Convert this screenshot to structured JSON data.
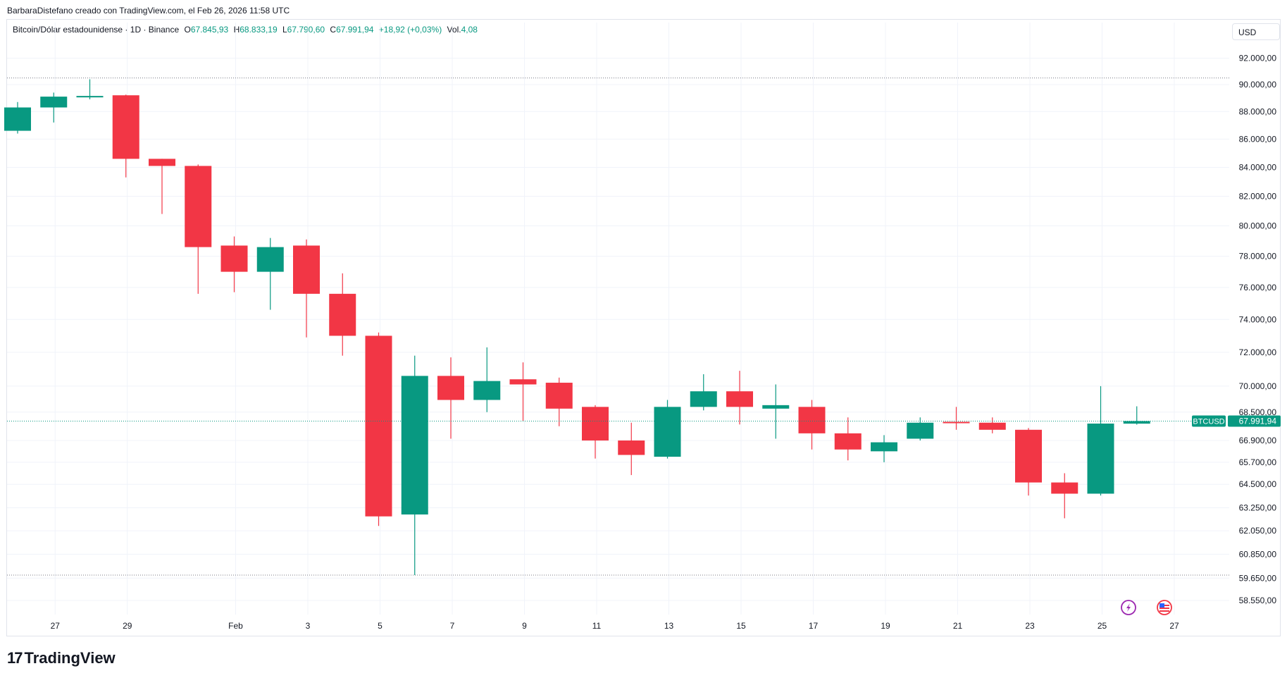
{
  "credit": "BarbaraDistefano creado con TradingView.com, el Feb 26, 2026 11:58 UTC",
  "legend": {
    "symbol": "Bitcoin/Dólar estadounidense · 1D · Binance",
    "o_label": "O",
    "o_value": "67.845,93",
    "h_label": "H",
    "h_value": "68.833,19",
    "l_label": "L",
    "l_value": "67.790,60",
    "c_label": "C",
    "c_value": "67.991,94",
    "change": "+18,92 (+0,03%)",
    "vol_label": "Vol.",
    "vol_value": "4,08"
  },
  "currency_button": "USD",
  "logo_text": "TradingView",
  "icons": {
    "logo": "tradingview-logo-icon",
    "flash": "lightning-icon",
    "flag": "us-flag-icon"
  },
  "colors": {
    "up": "#089981",
    "down": "#f23645",
    "grid": "#f0f3fa",
    "price_tag": "#089981"
  },
  "chart_data": {
    "type": "candlestick",
    "symbol_tag": "BTCUSD",
    "last_price_label": "67.991,94",
    "last_price": 67991.94,
    "y_scale": "log",
    "ylim": [
      57800,
      93200
    ],
    "y_ticks": [
      92000,
      90000,
      88000,
      86000,
      84000,
      82000,
      80000,
      78000,
      76000,
      74000,
      72000,
      70000,
      68500,
      66900,
      65700,
      64500,
      63250,
      62050,
      60850,
      59650,
      58550
    ],
    "y_tick_labels": [
      "92.000,00",
      "90.000,00",
      "88.000,00",
      "86.000,00",
      "84.000,00",
      "82.000,00",
      "80.000,00",
      "78.000,00",
      "76.000,00",
      "74.000,00",
      "72.000,00",
      "70.000,00",
      "68.500,00",
      "66.900,00",
      "65.700,00",
      "64.500,00",
      "63.250,00",
      "62.050,00",
      "60.850,00",
      "59.650,00",
      "58.550,00"
    ],
    "x_ticks": [
      {
        "label": "27",
        "day": 1
      },
      {
        "label": "29",
        "day": 3
      },
      {
        "label": "Feb",
        "day": 6
      },
      {
        "label": "3",
        "day": 8
      },
      {
        "label": "5",
        "day": 10
      },
      {
        "label": "7",
        "day": 12
      },
      {
        "label": "9",
        "day": 14
      },
      {
        "label": "11",
        "day": 16
      },
      {
        "label": "13",
        "day": 18
      },
      {
        "label": "15",
        "day": 20
      },
      {
        "label": "17",
        "day": 22
      },
      {
        "label": "19",
        "day": 24
      },
      {
        "label": "21",
        "day": 26
      },
      {
        "label": "23",
        "day": 28
      },
      {
        "label": "25",
        "day": 30
      },
      {
        "label": "27",
        "day": 32
      }
    ],
    "reference_lines": [
      90500,
      59800
    ],
    "candles": [
      {
        "day": 0,
        "o": 86600,
        "h": 88700,
        "l": 86400,
        "c": 88300
      },
      {
        "day": 1,
        "o": 88300,
        "h": 89400,
        "l": 87200,
        "c": 89100
      },
      {
        "day": 2,
        "o": 89100,
        "h": 90400,
        "l": 88900,
        "c": 89150
      },
      {
        "day": 3,
        "o": 89200,
        "h": 89250,
        "l": 83300,
        "c": 84600
      },
      {
        "day": 4,
        "o": 84600,
        "h": 84400,
        "l": 80800,
        "c": 84100
      },
      {
        "day": 5,
        "o": 84100,
        "h": 84200,
        "l": 75600,
        "c": 78600
      },
      {
        "day": 6,
        "o": 78700,
        "h": 79300,
        "l": 75700,
        "c": 77000
      },
      {
        "day": 7,
        "o": 77000,
        "h": 79200,
        "l": 74600,
        "c": 78600
      },
      {
        "day": 8,
        "o": 78700,
        "h": 79100,
        "l": 72900,
        "c": 75600
      },
      {
        "day": 9,
        "o": 75600,
        "h": 76900,
        "l": 71800,
        "c": 73000
      },
      {
        "day": 10,
        "o": 73000,
        "h": 73200,
        "l": 62300,
        "c": 62800
      },
      {
        "day": 11,
        "o": 62900,
        "h": 71800,
        "l": 59800,
        "c": 70600
      },
      {
        "day": 12,
        "o": 70600,
        "h": 71700,
        "l": 67000,
        "c": 69200
      },
      {
        "day": 13,
        "o": 69200,
        "h": 72300,
        "l": 68500,
        "c": 70300
      },
      {
        "day": 14,
        "o": 70400,
        "h": 71400,
        "l": 68000,
        "c": 70100
      },
      {
        "day": 15,
        "o": 70200,
        "h": 70500,
        "l": 67700,
        "c": 68700
      },
      {
        "day": 16,
        "o": 68800,
        "h": 68900,
        "l": 65900,
        "c": 66900
      },
      {
        "day": 17,
        "o": 66900,
        "h": 67900,
        "l": 65000,
        "c": 66100
      },
      {
        "day": 18,
        "o": 66000,
        "h": 69200,
        "l": 65900,
        "c": 68800
      },
      {
        "day": 19,
        "o": 68800,
        "h": 70700,
        "l": 68600,
        "c": 69700
      },
      {
        "day": 20,
        "o": 69700,
        "h": 70900,
        "l": 67800,
        "c": 68800
      },
      {
        "day": 21,
        "o": 68700,
        "h": 70100,
        "l": 67000,
        "c": 68900
      },
      {
        "day": 22,
        "o": 68800,
        "h": 69200,
        "l": 66400,
        "c": 67300
      },
      {
        "day": 23,
        "o": 67300,
        "h": 68200,
        "l": 65800,
        "c": 66400
      },
      {
        "day": 24,
        "o": 66300,
        "h": 67200,
        "l": 65700,
        "c": 66800
      },
      {
        "day": 25,
        "o": 67000,
        "h": 68200,
        "l": 66900,
        "c": 67900
      },
      {
        "day": 26,
        "o": 67950,
        "h": 68800,
        "l": 67500,
        "c": 67900
      },
      {
        "day": 27,
        "o": 67900,
        "h": 68200,
        "l": 67300,
        "c": 67500
      },
      {
        "day": 28,
        "o": 67500,
        "h": 67600,
        "l": 63900,
        "c": 64600
      },
      {
        "day": 29,
        "o": 64600,
        "h": 65100,
        "l": 62700,
        "c": 64000
      },
      {
        "day": 30,
        "o": 64000,
        "h": 70000,
        "l": 63900,
        "c": 67850
      },
      {
        "day": 31,
        "o": 67845.93,
        "h": 68833.19,
        "l": 67790.6,
        "c": 67991.94
      }
    ]
  }
}
